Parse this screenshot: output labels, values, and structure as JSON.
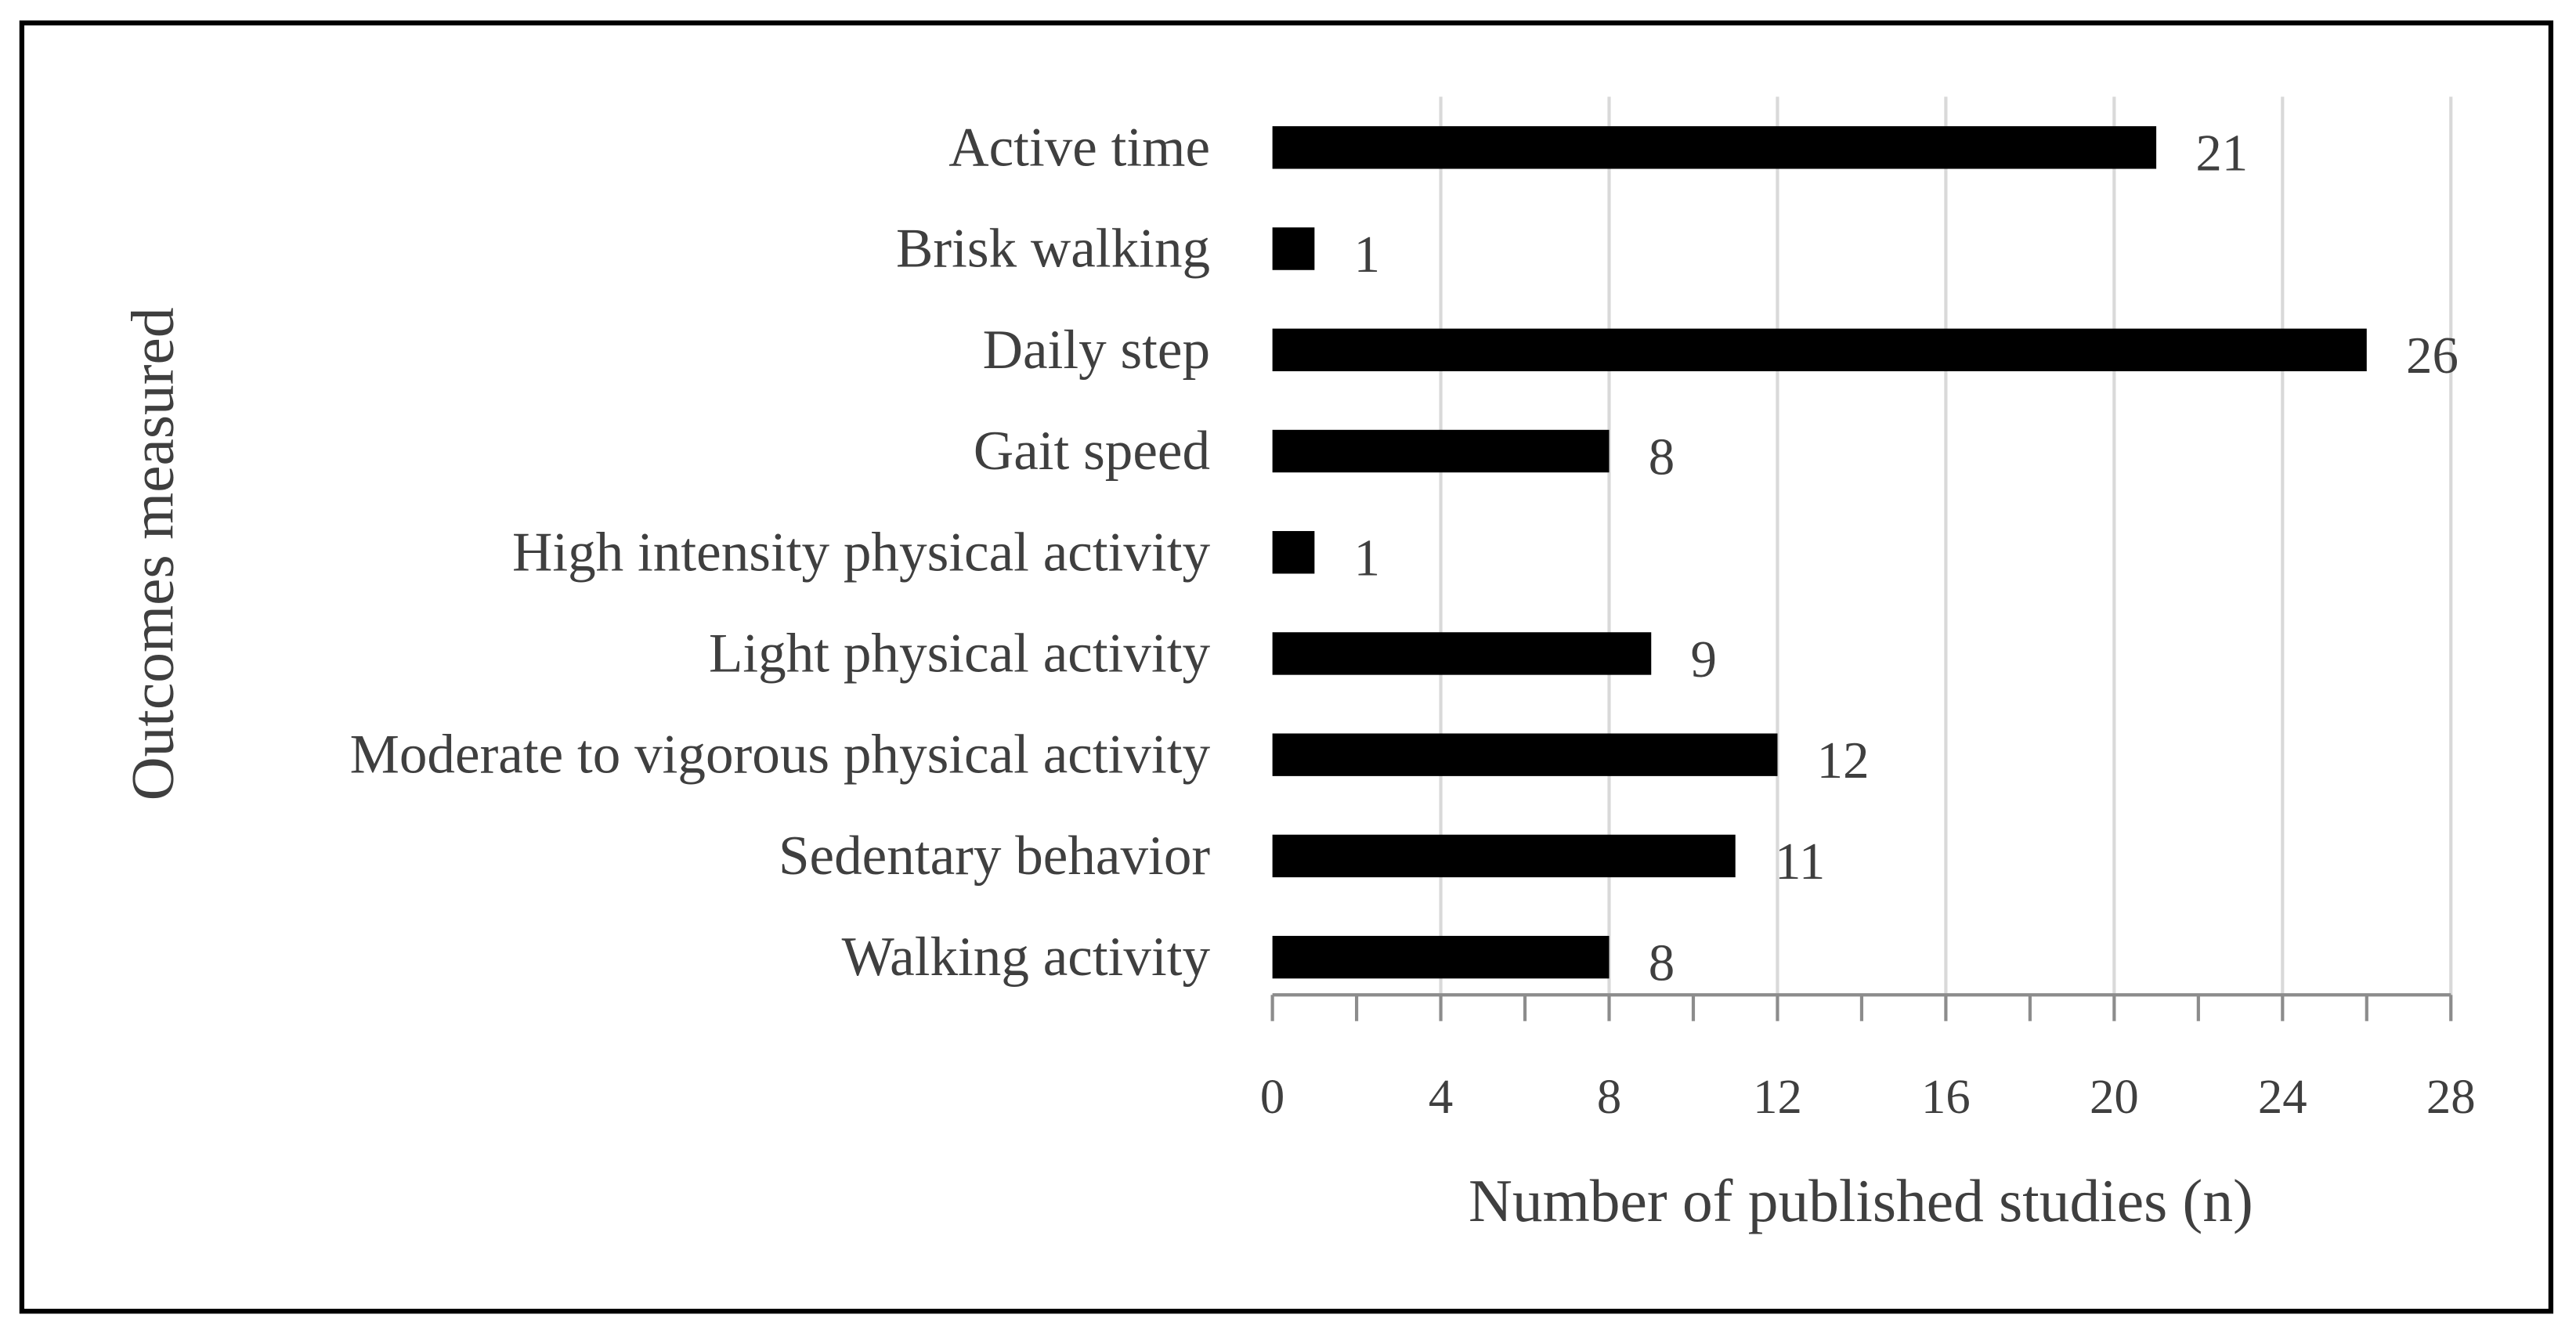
{
  "chart_data": {
    "type": "bar",
    "orientation": "horizontal",
    "categories": [
      "Active time",
      "Brisk walking",
      "Daily step",
      "Gait speed",
      "High intensity physical activity",
      "Light physical activity",
      "Moderate to vigorous physical activity",
      "Sedentary behavior",
      "Walking activity"
    ],
    "values": [
      21,
      1,
      26,
      8,
      1,
      9,
      12,
      11,
      8
    ],
    "data_labels": [
      "21",
      "1",
      "26",
      "8",
      "1",
      "9",
      "12",
      "11",
      "8"
    ],
    "xlabel": "Number of published studies (n)",
    "ylabel": "Outcomes measured",
    "xlim": [
      0,
      28
    ],
    "xticks": [
      "0",
      "4",
      "8",
      "12",
      "16",
      "20",
      "24",
      "28"
    ],
    "grid": "vertical",
    "bar_color": "#000000",
    "grid_color": "#d9d9d9",
    "axis_color": "#8c8c8c",
    "border_color": "#000000"
  }
}
